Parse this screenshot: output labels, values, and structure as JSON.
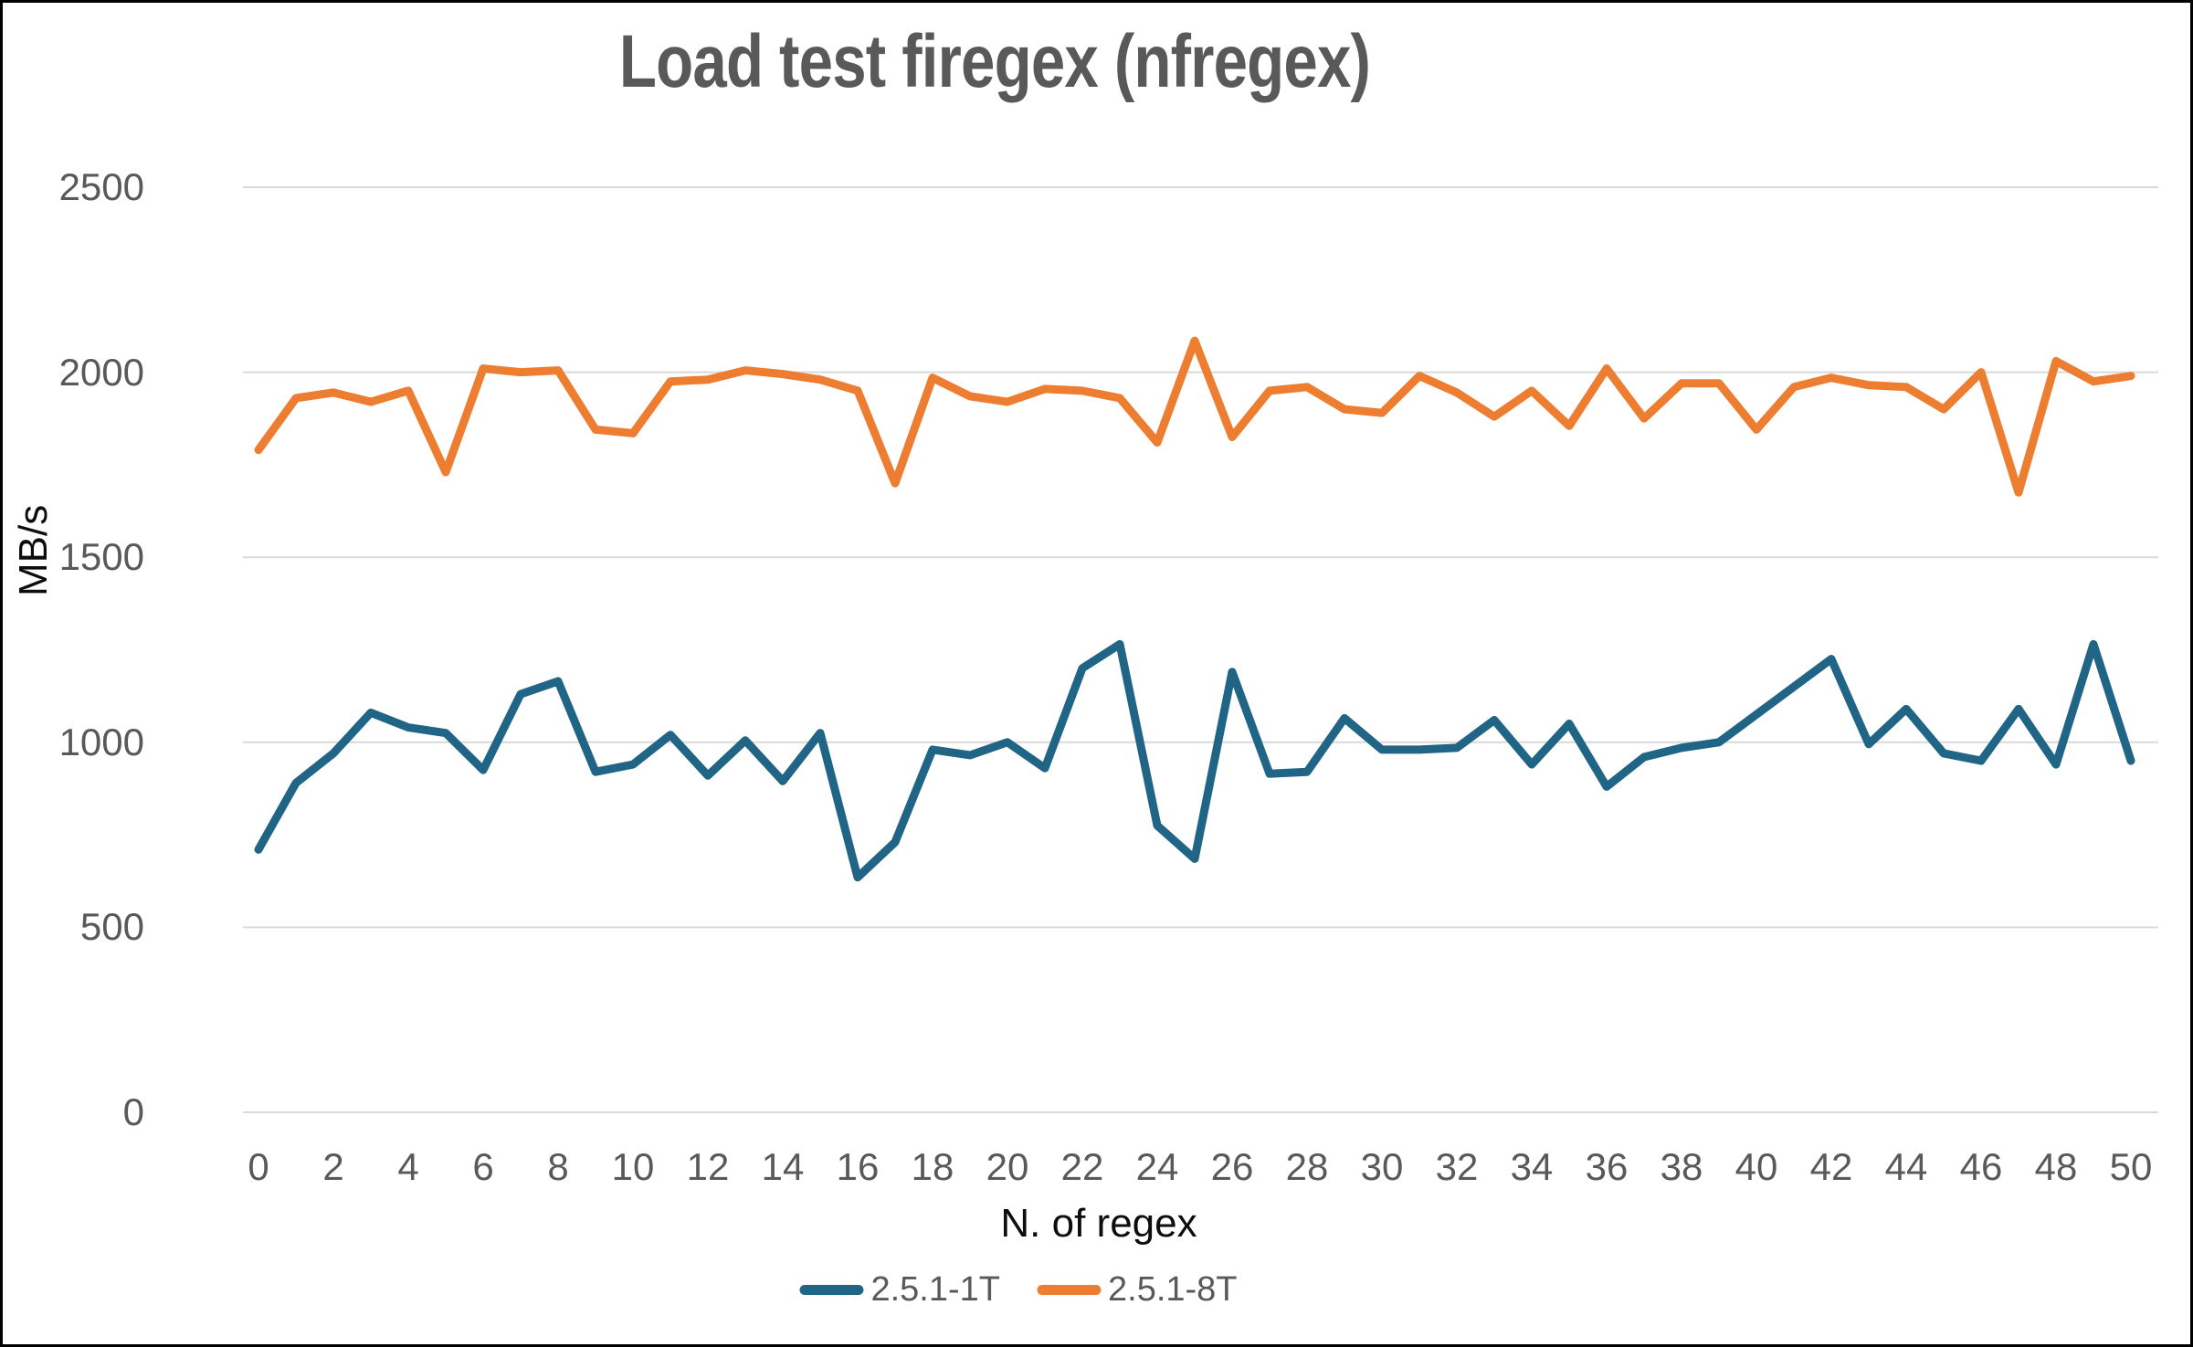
{
  "title": "Load test firegex (nfregex)",
  "colors": {
    "title_text": "#595959",
    "tick_text": "#595959",
    "axis_title_text": "#0d0d0d",
    "grid": "#d9d9d9",
    "border": "#000000",
    "series_1T": "#216586",
    "series_8T": "#ed7d31"
  },
  "chart_data": {
    "type": "line",
    "title": "Load test firegex (nfregex)",
    "xlabel": "N. of regex",
    "ylabel": "MB/s",
    "ylim": [
      0,
      2500
    ],
    "y_ticks": [
      0,
      500,
      1000,
      1500,
      2000,
      2500
    ],
    "x_ticks": [
      0,
      2,
      4,
      6,
      8,
      10,
      12,
      14,
      16,
      18,
      20,
      22,
      24,
      26,
      28,
      30,
      32,
      34,
      36,
      38,
      40,
      42,
      44,
      46,
      48,
      50
    ],
    "x_start": 0,
    "x_end": 50,
    "x_step": 1,
    "grid": true,
    "legend_position": "bottom",
    "series": [
      {
        "name": "2.5.1-1T",
        "color": "#216586",
        "values": [
          710,
          890,
          970,
          1080,
          1040,
          1025,
          925,
          1130,
          1165,
          920,
          940,
          1020,
          910,
          1005,
          895,
          1025,
          635,
          730,
          980,
          965,
          1000,
          930,
          1200,
          1265,
          775,
          685,
          1190,
          915,
          920,
          1065,
          980,
          980,
          985,
          1060,
          940,
          1050,
          880,
          960,
          985,
          1000,
          1075,
          1150,
          1225,
          995,
          1090,
          970,
          950,
          1090,
          940,
          1265,
          950
        ]
      },
      {
        "name": "2.5.1-8T",
        "color": "#ed7d31",
        "values": [
          1790,
          1930,
          1945,
          1920,
          1950,
          1730,
          2010,
          2000,
          2005,
          1845,
          1835,
          1975,
          1980,
          2005,
          1995,
          1980,
          1950,
          1700,
          1985,
          1935,
          1920,
          1955,
          1950,
          1930,
          1810,
          2085,
          1825,
          1950,
          1960,
          1900,
          1890,
          1990,
          1945,
          1880,
          1950,
          1855,
          2010,
          1875,
          1970,
          1970,
          1845,
          1960,
          1985,
          1965,
          1960,
          1900,
          2000,
          1675,
          2030,
          1975,
          1990
        ]
      }
    ]
  }
}
